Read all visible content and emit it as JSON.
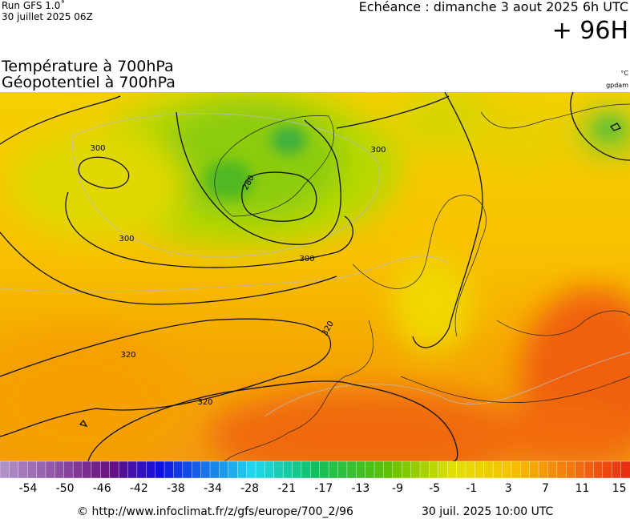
{
  "header": {
    "run": "Run GFS 1.0˚",
    "run_date": "30 juillet 2025 06Z",
    "echeance": "Echéance : dimanche 3 aout 2025 6h UTC",
    "lead": "+ 96H"
  },
  "titles": {
    "temperature": "Température à 700hPa",
    "geopotential": "Géopotentiel à 700hPa",
    "temperature_unit": "°C",
    "geopotential_unit": "gpdam"
  },
  "map": {
    "contour_labels": [
      300,
      280,
      300,
      300,
      300,
      320,
      320,
      320
    ]
  },
  "colorbar": {
    "labels": [
      -54,
      -50,
      -46,
      -42,
      -38,
      -34,
      -28,
      -21,
      -17,
      -13,
      -9,
      -5,
      -1,
      3,
      7,
      11,
      15
    ]
  },
  "footer": {
    "source": "© http://www.infoclimat.fr/z/gfs/europe/700_2/96",
    "issued": "30 juil. 2025 10:00 UTC"
  }
}
